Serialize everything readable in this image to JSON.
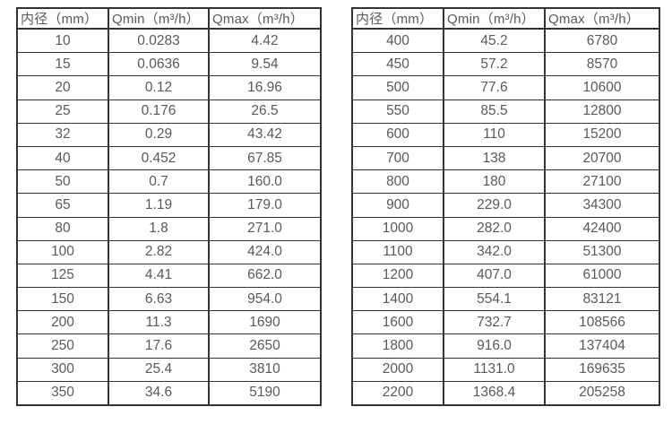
{
  "page": {
    "background_color": "#ffffff",
    "text_color": "#595959",
    "border_color": "#333333"
  },
  "tables": [
    {
      "name": "flow-spec-table-small-diameters",
      "columns": [
        "内径（mm）",
        "Qmin（m³/h）",
        "Qmax（m³/h）"
      ],
      "rows": [
        [
          "10",
          "0.0283",
          "4.42"
        ],
        [
          "15",
          "0.0636",
          "9.54"
        ],
        [
          "20",
          "0.12",
          "16.96"
        ],
        [
          "25",
          "0.176",
          "26.5"
        ],
        [
          "32",
          "0.29",
          "43.42"
        ],
        [
          "40",
          "0.452",
          "67.85"
        ],
        [
          "50",
          "0.7",
          "160.0"
        ],
        [
          "65",
          "1.19",
          "179.0"
        ],
        [
          "80",
          "1.8",
          "271.0"
        ],
        [
          "100",
          "2.82",
          "424.0"
        ],
        [
          "125",
          "4.41",
          "662.0"
        ],
        [
          "150",
          "6.63",
          "954.0"
        ],
        [
          "200",
          "11.3",
          "1690"
        ],
        [
          "250",
          "17.6",
          "2650"
        ],
        [
          "300",
          "25.4",
          "3810"
        ],
        [
          "350",
          "34.6",
          "5190"
        ]
      ]
    },
    {
      "name": "flow-spec-table-large-diameters",
      "columns": [
        "内径（mm）",
        "Qmin（m³/h）",
        "Qmax（m³/h）"
      ],
      "rows": [
        [
          "400",
          "45.2",
          "6780"
        ],
        [
          "450",
          "57.2",
          "8570"
        ],
        [
          "500",
          "77.6",
          "10600"
        ],
        [
          "550",
          "85.5",
          "12800"
        ],
        [
          "600",
          "110",
          "15200"
        ],
        [
          "700",
          "138",
          "20700"
        ],
        [
          "800",
          "180",
          "27100"
        ],
        [
          "900",
          "229.0",
          "34300"
        ],
        [
          "1000",
          "282.0",
          "42400"
        ],
        [
          "1100",
          "342.0",
          "51300"
        ],
        [
          "1200",
          "407.0",
          "61000"
        ],
        [
          "1400",
          "554.1",
          "83121"
        ],
        [
          "1600",
          "732.7",
          "108566"
        ],
        [
          "1800",
          "916.0",
          "137404"
        ],
        [
          "2000",
          "1131.0",
          "169635"
        ],
        [
          "2200",
          "1368.4",
          "205258"
        ]
      ]
    }
  ]
}
